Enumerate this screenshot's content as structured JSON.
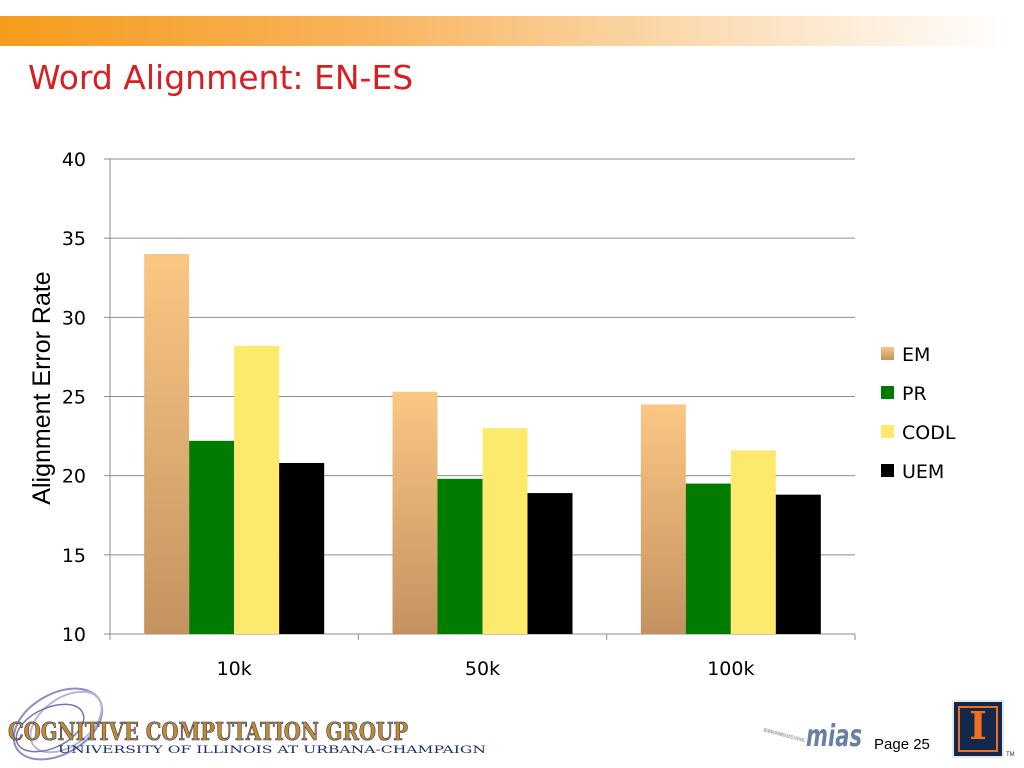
{
  "slide": {
    "title": "Word Alignment: EN-ES",
    "page_label": "Page 25"
  },
  "colors": {
    "top_bar": "#f59c1b",
    "title": "#d81e20",
    "em_top": "#fbc784",
    "em_bottom": "#c49260",
    "pr": "#007d00",
    "codl": "#fde96c",
    "uem": "#000000"
  },
  "chart_data": {
    "type": "bar",
    "categories": [
      "10k",
      "50k",
      "100k"
    ],
    "series": [
      {
        "name": "EM",
        "values": [
          34.0,
          25.3,
          24.5
        ]
      },
      {
        "name": "PR",
        "values": [
          22.2,
          19.8,
          19.5
        ]
      },
      {
        "name": "CODL",
        "values": [
          28.2,
          23.0,
          21.6
        ]
      },
      {
        "name": "UEM",
        "values": [
          20.8,
          18.9,
          18.8
        ]
      }
    ],
    "ylabel": "Alignment Error Rate",
    "xlabel": "",
    "ylim": [
      10,
      40
    ],
    "yticks": [
      10,
      15,
      20,
      25,
      30,
      35,
      40
    ],
    "grid": true,
    "legend_position": "right"
  },
  "logos": {
    "ccg_main": "COGNITIVE COMPUTATION GROUP",
    "ccg_sub": "UNIVERSITY OF ILLINOIS AT URBANA-CHAMPAIGN",
    "mias_text": "mias",
    "mias_small": "MULTIMODAL INFORMATION ACCESS & SYNTHESIS",
    "illinois_letter": "I",
    "tm": "TM"
  }
}
